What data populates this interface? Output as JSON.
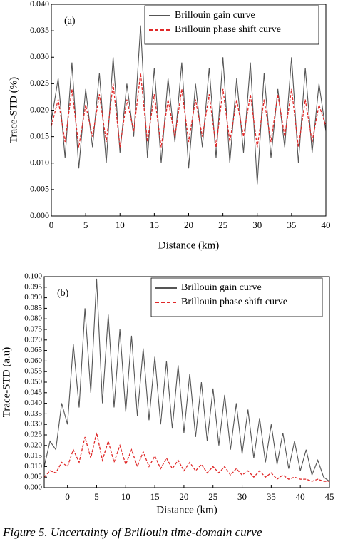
{
  "chart_data": [
    {
      "type": "line",
      "panel_label": "(a)",
      "x_label": "Distance (km)",
      "y_label": "Trace-STD (%)",
      "xlim": [
        0,
        40
      ],
      "xticks": [
        0,
        5,
        10,
        15,
        20,
        25,
        30,
        35,
        40
      ],
      "ylim": [
        0,
        0.04
      ],
      "yticks": [
        {
          "value": 0,
          "label": "0.000"
        },
        {
          "value": 0.005,
          "label": "0.005"
        },
        {
          "value": 0.01,
          "label": "0.010"
        },
        {
          "value": 0.015,
          "label": "0.015"
        },
        {
          "value": 0.02,
          "label": "0.020"
        },
        {
          "value": 0.025,
          "label": "0.025"
        },
        {
          "value": 0.03,
          "label": "0.030"
        },
        {
          "value": 0.035,
          "label": "0.035"
        },
        {
          "value": 0.04,
          "label": "0.040"
        }
      ],
      "legend": "upper right",
      "x": [
        0,
        1,
        2,
        3,
        4,
        5,
        6,
        7,
        8,
        9,
        10,
        11,
        12,
        13,
        14,
        15,
        16,
        17,
        18,
        19,
        20,
        21,
        22,
        23,
        24,
        25,
        26,
        27,
        28,
        29,
        30,
        31,
        32,
        33,
        34,
        35,
        36,
        37,
        38,
        39,
        40
      ],
      "series": [
        {
          "name": "Brillouin gain curve",
          "color": "#555555",
          "line_style": "solid",
          "values": [
            0.018,
            0.026,
            0.011,
            0.029,
            0.009,
            0.024,
            0.013,
            0.027,
            0.01,
            0.03,
            0.012,
            0.025,
            0.015,
            0.036,
            0.011,
            0.028,
            0.01,
            0.026,
            0.014,
            0.029,
            0.009,
            0.025,
            0.013,
            0.028,
            0.011,
            0.03,
            0.01,
            0.026,
            0.012,
            0.029,
            0.006,
            0.027,
            0.011,
            0.024,
            0.013,
            0.03,
            0.01,
            0.028,
            0.012,
            0.025,
            0.016
          ]
        },
        {
          "name": "Brillouin phase shift curve",
          "color": "#e02828",
          "line_style": "dashed",
          "values": [
            0.017,
            0.022,
            0.014,
            0.024,
            0.013,
            0.021,
            0.015,
            0.023,
            0.014,
            0.025,
            0.013,
            0.022,
            0.016,
            0.027,
            0.014,
            0.023,
            0.013,
            0.022,
            0.015,
            0.024,
            0.014,
            0.022,
            0.015,
            0.023,
            0.013,
            0.024,
            0.014,
            0.022,
            0.015,
            0.023,
            0.013,
            0.022,
            0.014,
            0.023,
            0.015,
            0.024,
            0.013,
            0.022,
            0.014,
            0.021,
            0.017
          ]
        }
      ]
    },
    {
      "type": "line",
      "panel_label": "(b)",
      "x_label": "Distance (km)",
      "y_label": "Trace-STD (a.u)",
      "xlim": [
        -4,
        45
      ],
      "xticks": [
        0,
        5,
        10,
        15,
        20,
        25,
        30,
        35,
        40,
        45
      ],
      "ylim": [
        0,
        0.1
      ],
      "yticks": [
        {
          "value": 0,
          "label": "0.000"
        },
        {
          "value": 0.005,
          "label": "0.005"
        },
        {
          "value": 0.01,
          "label": "0.010"
        },
        {
          "value": 0.015,
          "label": "0.015"
        },
        {
          "value": 0.02,
          "label": "0.020"
        },
        {
          "value": 0.025,
          "label": "0.025"
        },
        {
          "value": 0.03,
          "label": "0.030"
        },
        {
          "value": 0.035,
          "label": "0.035"
        },
        {
          "value": 0.04,
          "label": "0.040"
        },
        {
          "value": 0.045,
          "label": "0.045"
        },
        {
          "value": 0.05,
          "label": "0.050"
        },
        {
          "value": 0.055,
          "label": "0.055"
        },
        {
          "value": 0.06,
          "label": "0.060"
        },
        {
          "value": 0.065,
          "label": "0.065"
        },
        {
          "value": 0.07,
          "label": "0.070"
        },
        {
          "value": 0.075,
          "label": "0.075"
        },
        {
          "value": 0.08,
          "label": "0.080"
        },
        {
          "value": 0.085,
          "label": "0.085"
        },
        {
          "value": 0.09,
          "label": "0.090"
        },
        {
          "value": 0.095,
          "label": "0.095"
        },
        {
          "value": 0.1,
          "label": "0.100"
        }
      ],
      "legend": "upper right",
      "x": [
        -4,
        -3,
        -2,
        -1,
        0,
        1,
        2,
        3,
        4,
        5,
        6,
        7,
        8,
        9,
        10,
        11,
        12,
        13,
        14,
        15,
        16,
        17,
        18,
        19,
        20,
        21,
        22,
        23,
        24,
        25,
        26,
        27,
        28,
        29,
        30,
        31,
        32,
        33,
        34,
        35,
        36,
        37,
        38,
        39,
        40,
        41,
        42,
        43,
        44,
        45
      ],
      "series": [
        {
          "name": "Brillouin gain curve",
          "color": "#555555",
          "line_style": "solid",
          "values": [
            0.01,
            0.022,
            0.018,
            0.04,
            0.03,
            0.068,
            0.038,
            0.085,
            0.045,
            0.099,
            0.04,
            0.082,
            0.038,
            0.075,
            0.036,
            0.072,
            0.034,
            0.066,
            0.032,
            0.062,
            0.03,
            0.06,
            0.028,
            0.058,
            0.026,
            0.054,
            0.024,
            0.05,
            0.022,
            0.047,
            0.02,
            0.044,
            0.018,
            0.04,
            0.016,
            0.037,
            0.014,
            0.033,
            0.012,
            0.03,
            0.011,
            0.026,
            0.009,
            0.022,
            0.008,
            0.018,
            0.006,
            0.013,
            0.005,
            0.003
          ]
        },
        {
          "name": "Brillouin phase shift curve",
          "color": "#e02828",
          "line_style": "dashed",
          "values": [
            0.005,
            0.008,
            0.007,
            0.012,
            0.01,
            0.018,
            0.012,
            0.024,
            0.014,
            0.026,
            0.013,
            0.022,
            0.012,
            0.02,
            0.011,
            0.018,
            0.01,
            0.017,
            0.01,
            0.015,
            0.009,
            0.014,
            0.009,
            0.013,
            0.008,
            0.012,
            0.008,
            0.011,
            0.007,
            0.01,
            0.007,
            0.01,
            0.006,
            0.009,
            0.006,
            0.008,
            0.005,
            0.008,
            0.005,
            0.007,
            0.004,
            0.006,
            0.004,
            0.005,
            0.004,
            0.004,
            0.003,
            0.004,
            0.003,
            0.003
          ]
        }
      ]
    }
  ],
  "caption": "Figure 5. Uncertainty of Brillouin time-domain curve"
}
